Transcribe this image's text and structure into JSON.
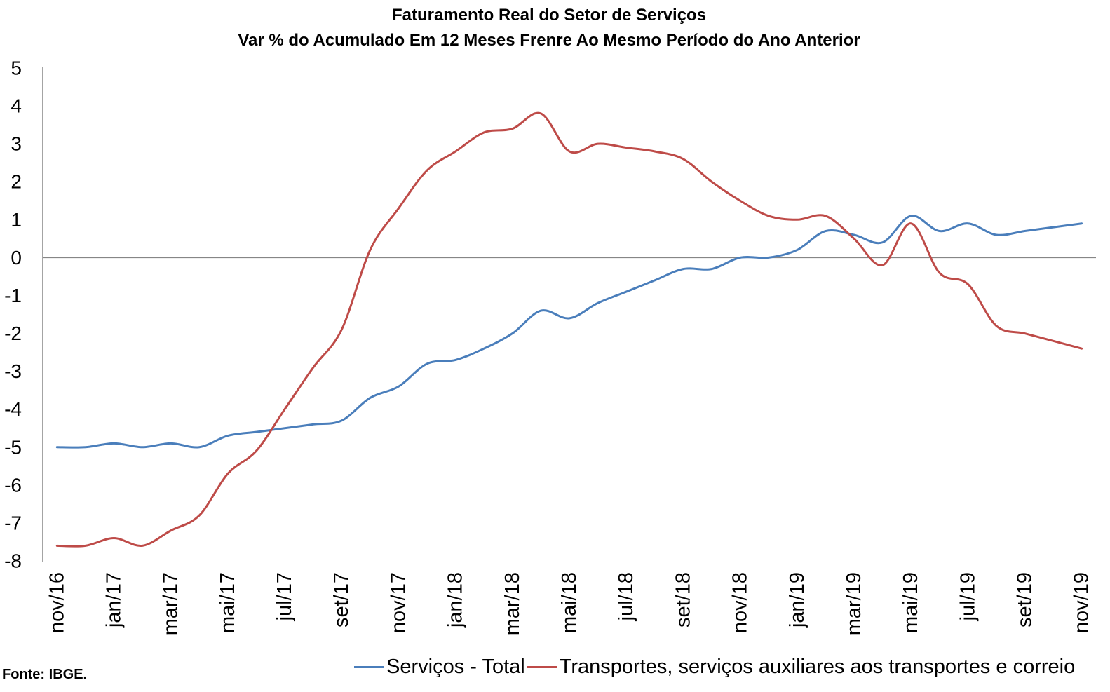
{
  "chart_data": {
    "type": "line",
    "title": "Faturamento Real do Setor de Serviços",
    "subtitle": "Var % do Acumulado Em 12 Meses Frenre Ao Mesmo Período do Ano Anterior",
    "ylim": [
      -8,
      5
    ],
    "yticks": [
      5,
      4,
      3,
      2,
      1,
      0,
      -1,
      -2,
      -3,
      -4,
      -5,
      -6,
      -7,
      -8
    ],
    "x_tick_labels": [
      "nov/16",
      "jan/17",
      "mar/17",
      "mai/17",
      "jul/17",
      "set/17",
      "nov/17",
      "jan/18",
      "mar/18",
      "mai/18",
      "jul/18",
      "set/18",
      "nov/18",
      "jan/19",
      "mar/19",
      "mai/19",
      "jul/19",
      "set/19",
      "nov/19"
    ],
    "series": [
      {
        "name": "Serviços - Total",
        "color": "#4A7EBB",
        "values": [
          -5.0,
          -5.0,
          -4.9,
          -5.0,
          -4.9,
          -5.0,
          -4.7,
          -4.6,
          -4.5,
          -4.4,
          -4.3,
          -3.7,
          -3.4,
          -2.8,
          -2.7,
          -2.4,
          -2.0,
          -1.4,
          -1.6,
          -1.2,
          -0.9,
          -0.6,
          -0.3,
          -0.3,
          0.0,
          0.0,
          0.2,
          0.7,
          0.6,
          0.4,
          1.1,
          0.7,
          0.9,
          0.6,
          0.7,
          0.8,
          0.9
        ]
      },
      {
        "name": "Transportes, serviços auxiliares aos transportes e correio",
        "color": "#BE4B48",
        "values": [
          -7.6,
          -7.6,
          -7.4,
          -7.6,
          -7.2,
          -6.8,
          -5.7,
          -5.1,
          -4.0,
          -2.9,
          -1.9,
          0.2,
          1.3,
          2.3,
          2.8,
          3.3,
          3.4,
          3.8,
          2.8,
          3.0,
          2.9,
          2.8,
          2.6,
          2.0,
          1.5,
          1.1,
          1.0,
          1.1,
          0.5,
          -0.2,
          0.9,
          -0.4,
          -0.7,
          -1.8,
          -2.0,
          -2.2,
          -2.4
        ]
      }
    ],
    "smoothed": true,
    "grid": false,
    "legend": "bottom"
  },
  "source": "Fonte: IBGE."
}
